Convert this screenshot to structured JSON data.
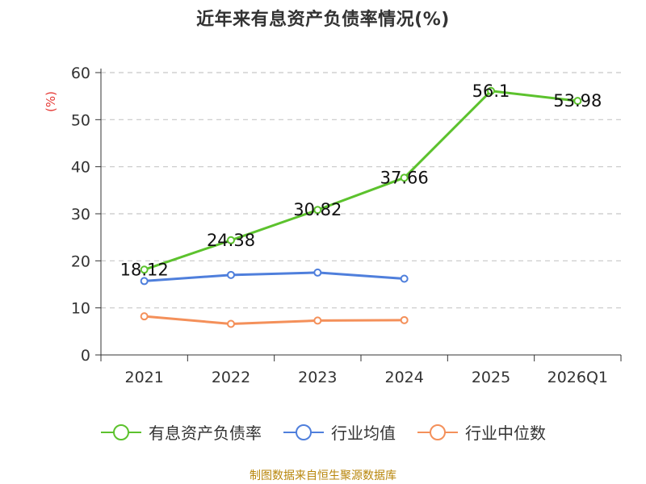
{
  "chart_data": {
    "type": "line",
    "title": "近年来有息资产负债率情况(%)",
    "ylabel": "(%)",
    "xlabel": "",
    "categories": [
      "2021",
      "2022",
      "2023",
      "2024",
      "2025",
      "2026Q1"
    ],
    "ylim": [
      0,
      60
    ],
    "yticks": [
      0,
      10,
      20,
      30,
      40,
      50,
      60
    ],
    "grid": true,
    "legend_position": "bottom",
    "series": [
      {
        "name": "有息资产负债率",
        "color": "#5cc22d",
        "values": [
          18.12,
          24.38,
          30.82,
          37.66,
          56.1,
          53.98
        ],
        "data_labels": [
          "18.12",
          "24.38",
          "30.82",
          "37.66",
          "56.1",
          "53.98"
        ]
      },
      {
        "name": "行业均值",
        "color": "#4f7fdc",
        "values": [
          15.7,
          17.0,
          17.5,
          16.2,
          null,
          null
        ]
      },
      {
        "name": "行业中位数",
        "color": "#f4905a",
        "values": [
          8.2,
          6.6,
          7.3,
          7.4,
          null,
          null
        ]
      }
    ]
  },
  "source_note": "制图数据来自恒生聚源数据库"
}
